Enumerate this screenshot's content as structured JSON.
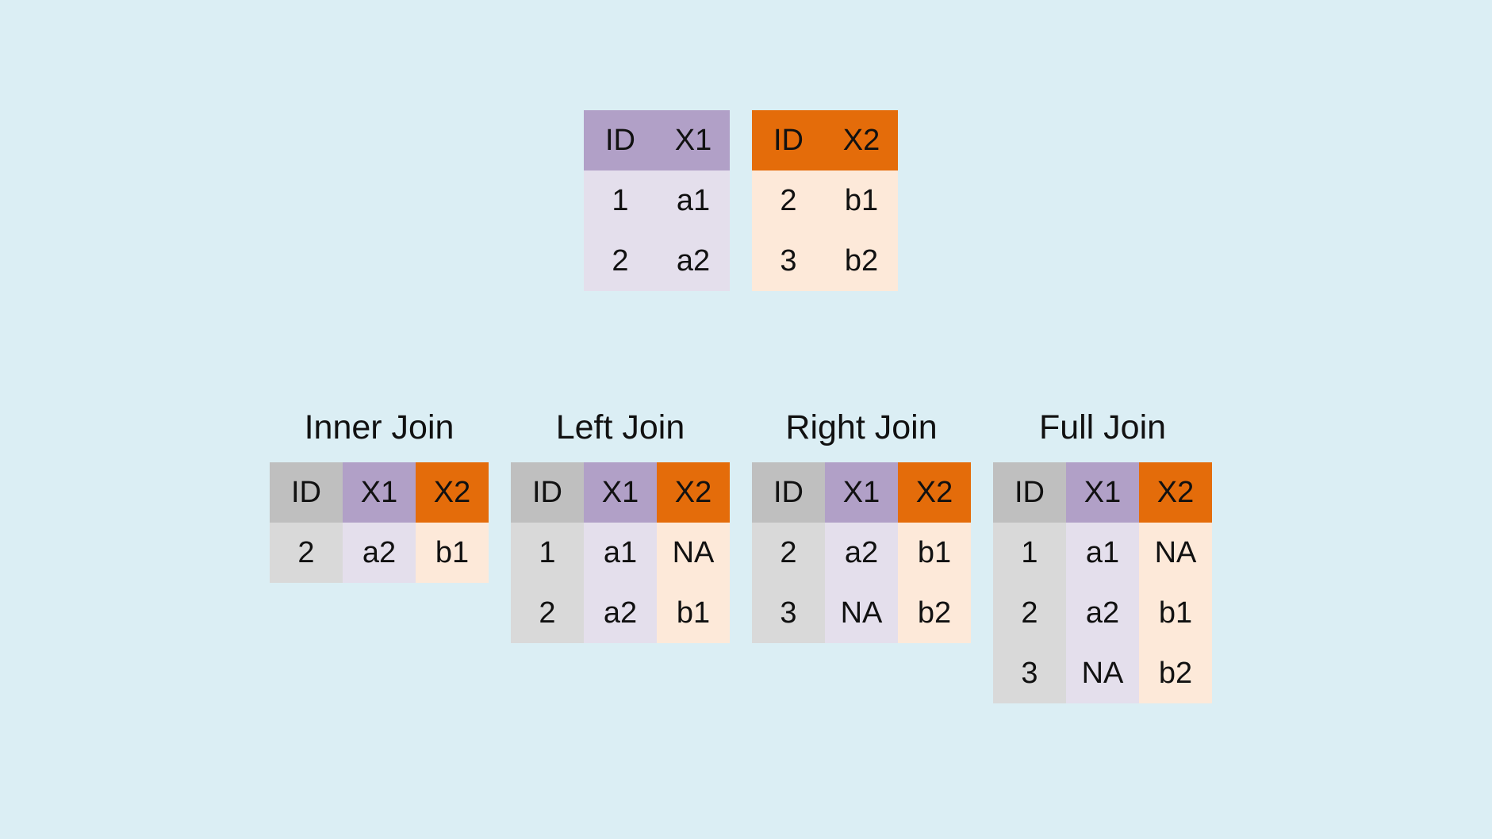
{
  "source_tables": {
    "table_a": {
      "columns": [
        "ID",
        "X1"
      ],
      "rows": [
        [
          "1",
          "a1"
        ],
        [
          "2",
          "a2"
        ]
      ]
    },
    "table_b": {
      "columns": [
        "ID",
        "X2"
      ],
      "rows": [
        [
          "2",
          "b1"
        ],
        [
          "3",
          "b2"
        ]
      ]
    }
  },
  "joins": {
    "inner": {
      "title": "Inner Join",
      "columns": [
        "ID",
        "X1",
        "X2"
      ],
      "rows": [
        [
          "2",
          "a2",
          "b1"
        ]
      ]
    },
    "left": {
      "title": "Left Join",
      "columns": [
        "ID",
        "X1",
        "X2"
      ],
      "rows": [
        [
          "1",
          "a1",
          "NA"
        ],
        [
          "2",
          "a2",
          "b1"
        ]
      ]
    },
    "right": {
      "title": "Right Join",
      "columns": [
        "ID",
        "X1",
        "X2"
      ],
      "rows": [
        [
          "2",
          "a2",
          "b1"
        ],
        [
          "3",
          "NA",
          "b2"
        ]
      ]
    },
    "full": {
      "title": "Full Join",
      "columns": [
        "ID",
        "X1",
        "X2"
      ],
      "rows": [
        [
          "1",
          "a1",
          "NA"
        ],
        [
          "2",
          "a2",
          "b1"
        ],
        [
          "3",
          "NA",
          "b2"
        ]
      ]
    }
  },
  "colors": {
    "background": "#dbeef4",
    "id_header": "#bfbfbf",
    "id_cell": "#d9d9d9",
    "x1_header": "#b1a0c7",
    "x1_cell": "#e4dfec",
    "x2_header": "#e46c0a",
    "x2_cell": "#fde9d9"
  }
}
